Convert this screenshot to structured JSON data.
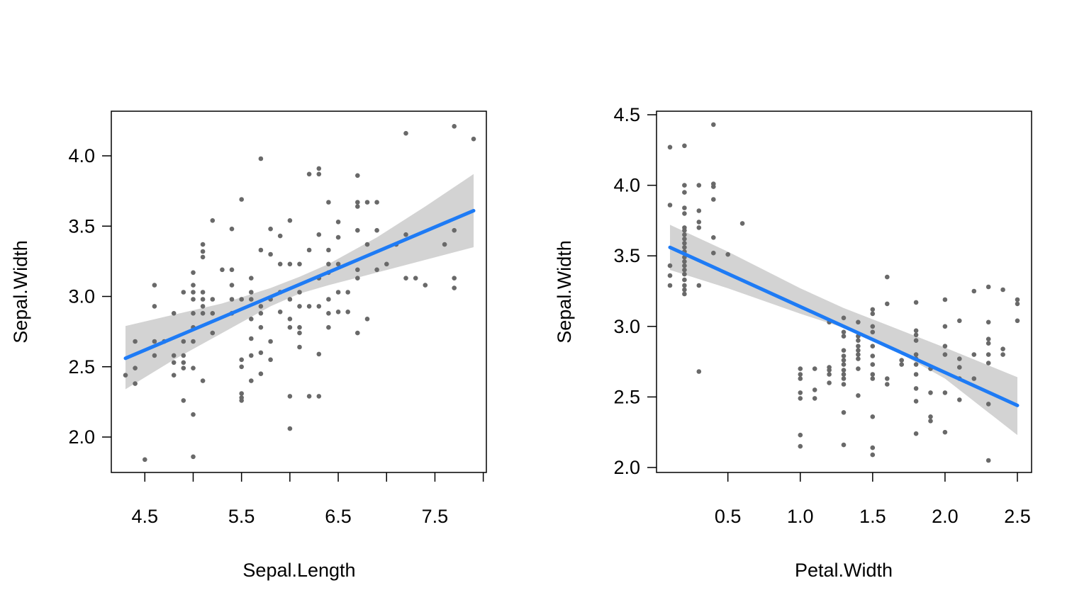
{
  "chart_data": [
    {
      "type": "scatter",
      "xlabel": "Sepal.Length",
      "ylabel": "Sepal.Width",
      "xlim": [
        4.3,
        7.9
      ],
      "ylim": [
        1.8,
        4.25
      ],
      "xticks": [
        "4.5",
        "5.5",
        "6.5",
        "7.5"
      ],
      "xtick_values": [
        4.5,
        5.0,
        5.5,
        6.0,
        6.5,
        7.0,
        7.5,
        8.0
      ],
      "yticks": [
        "2.0",
        "2.5",
        "3.0",
        "3.5",
        "4.0"
      ],
      "ytick_values": [
        2.0,
        2.5,
        3.0,
        3.5,
        4.0
      ],
      "point_color": "#696969",
      "fit_color": "#1E7BF5",
      "band_color": "#D3D3D3",
      "fit": {
        "type": "linear",
        "x": [
          4.3,
          7.9
        ],
        "y": [
          2.56,
          3.61
        ]
      },
      "band": {
        "x": [
          4.3,
          4.8,
          5.3,
          5.8,
          6.1,
          6.4,
          6.9,
          7.4,
          7.9
        ],
        "lower": [
          2.34,
          2.55,
          2.74,
          2.93,
          3.02,
          3.08,
          3.17,
          3.26,
          3.35
        ],
        "upper": [
          2.79,
          2.87,
          2.95,
          3.06,
          3.14,
          3.23,
          3.42,
          3.64,
          3.87
        ]
      },
      "grid": false,
      "points": [
        [
          4.3,
          2.44
        ],
        [
          4.4,
          2.68
        ],
        [
          4.4,
          2.49
        ],
        [
          4.4,
          2.38
        ],
        [
          4.5,
          1.84
        ],
        [
          4.6,
          3.08
        ],
        [
          4.6,
          2.93
        ],
        [
          4.6,
          2.68
        ],
        [
          4.6,
          2.58
        ],
        [
          4.7,
          2.68
        ],
        [
          4.8,
          2.88
        ],
        [
          4.8,
          2.58
        ],
        [
          4.8,
          2.53
        ],
        [
          4.8,
          2.44
        ],
        [
          4.9,
          2.26
        ],
        [
          4.9,
          2.68
        ],
        [
          4.9,
          2.58
        ],
        [
          4.9,
          2.53
        ],
        [
          4.9,
          2.49
        ],
        [
          4.9,
          3.03
        ],
        [
          5.0,
          3.17
        ],
        [
          5.0,
          3.08
        ],
        [
          5.0,
          3.03
        ],
        [
          5.0,
          2.98
        ],
        [
          5.0,
          2.88
        ],
        [
          5.0,
          2.78
        ],
        [
          5.0,
          2.68
        ],
        [
          5.0,
          2.49
        ],
        [
          5.0,
          2.16
        ],
        [
          5.0,
          1.86
        ],
        [
          5.1,
          3.37
        ],
        [
          5.1,
          3.32
        ],
        [
          5.1,
          3.28
        ],
        [
          5.1,
          3.03
        ],
        [
          5.1,
          2.98
        ],
        [
          5.1,
          2.93
        ],
        [
          5.1,
          2.88
        ],
        [
          5.1,
          2.4
        ],
        [
          5.2,
          3.54
        ],
        [
          5.2,
          2.98
        ],
        [
          5.2,
          2.88
        ],
        [
          5.2,
          2.74
        ],
        [
          5.3,
          3.19
        ],
        [
          5.4,
          3.48
        ],
        [
          5.4,
          3.19
        ],
        [
          5.4,
          3.08
        ],
        [
          5.4,
          2.98
        ],
        [
          5.4,
          2.88
        ],
        [
          5.5,
          3.69
        ],
        [
          5.5,
          2.98
        ],
        [
          5.5,
          2.55
        ],
        [
          5.5,
          2.5
        ],
        [
          5.5,
          2.31
        ],
        [
          5.5,
          2.28
        ],
        [
          5.5,
          2.26
        ],
        [
          5.6,
          3.13
        ],
        [
          5.6,
          3.03
        ],
        [
          5.6,
          2.98
        ],
        [
          5.6,
          2.84
        ],
        [
          5.6,
          2.7
        ],
        [
          5.6,
          2.58
        ],
        [
          5.6,
          2.4
        ],
        [
          5.7,
          3.98
        ],
        [
          5.7,
          3.33
        ],
        [
          5.7,
          2.93
        ],
        [
          5.7,
          2.88
        ],
        [
          5.7,
          2.78
        ],
        [
          5.7,
          2.6
        ],
        [
          5.7,
          2.45
        ],
        [
          5.8,
          3.48
        ],
        [
          5.8,
          3.3
        ],
        [
          5.8,
          2.98
        ],
        [
          5.8,
          2.68
        ],
        [
          5.8,
          2.55
        ],
        [
          5.9,
          3.43
        ],
        [
          5.9,
          3.23
        ],
        [
          5.9,
          3.03
        ],
        [
          5.9,
          2.89
        ],
        [
          6.0,
          3.54
        ],
        [
          6.0,
          3.23
        ],
        [
          6.0,
          2.98
        ],
        [
          6.0,
          2.84
        ],
        [
          6.0,
          2.78
        ],
        [
          6.0,
          2.29
        ],
        [
          6.0,
          2.06
        ],
        [
          6.1,
          3.23
        ],
        [
          6.1,
          3.03
        ],
        [
          6.1,
          2.93
        ],
        [
          6.1,
          2.78
        ],
        [
          6.1,
          2.74
        ],
        [
          6.1,
          2.64
        ],
        [
          6.2,
          3.87
        ],
        [
          6.2,
          3.33
        ],
        [
          6.2,
          2.93
        ],
        [
          6.2,
          2.29
        ],
        [
          6.3,
          3.91
        ],
        [
          6.3,
          3.87
        ],
        [
          6.3,
          3.44
        ],
        [
          6.3,
          3.13
        ],
        [
          6.3,
          2.93
        ],
        [
          6.3,
          2.59
        ],
        [
          6.3,
          2.29
        ],
        [
          6.4,
          3.67
        ],
        [
          6.4,
          3.33
        ],
        [
          6.4,
          3.23
        ],
        [
          6.4,
          3.17
        ],
        [
          6.4,
          2.98
        ],
        [
          6.4,
          2.88
        ],
        [
          6.4,
          2.78
        ],
        [
          6.5,
          3.53
        ],
        [
          6.5,
          3.42
        ],
        [
          6.5,
          3.23
        ],
        [
          6.5,
          3.03
        ],
        [
          6.5,
          2.89
        ],
        [
          6.6,
          3.03
        ],
        [
          6.6,
          2.89
        ],
        [
          6.7,
          3.86
        ],
        [
          6.7,
          3.67
        ],
        [
          6.7,
          3.64
        ],
        [
          6.7,
          3.47
        ],
        [
          6.7,
          3.19
        ],
        [
          6.7,
          3.13
        ],
        [
          6.7,
          2.74
        ],
        [
          6.8,
          3.67
        ],
        [
          6.8,
          3.37
        ],
        [
          6.8,
          2.84
        ],
        [
          6.9,
          3.67
        ],
        [
          6.9,
          3.47
        ],
        [
          6.9,
          3.19
        ],
        [
          7.0,
          3.23
        ],
        [
          7.1,
          3.37
        ],
        [
          7.2,
          4.16
        ],
        [
          7.2,
          3.44
        ],
        [
          7.2,
          3.13
        ],
        [
          7.3,
          3.13
        ],
        [
          7.4,
          3.08
        ],
        [
          7.6,
          3.37
        ],
        [
          7.7,
          4.21
        ],
        [
          7.7,
          3.47
        ],
        [
          7.7,
          3.13
        ],
        [
          7.7,
          3.06
        ],
        [
          7.9,
          4.12
        ]
      ]
    },
    {
      "type": "scatter",
      "xlabel": "Petal.Width",
      "ylabel": "Sepal.Width",
      "xlim": [
        0.1,
        2.5
      ],
      "ylim": [
        2.0,
        4.45
      ],
      "xticks": [
        "0.5",
        "1.0",
        "1.5",
        "2.0",
        "2.5"
      ],
      "xtick_values": [
        0.5,
        1.0,
        1.5,
        2.0,
        2.5
      ],
      "yticks": [
        "2.0",
        "2.5",
        "3.0",
        "3.5",
        "4.0",
        "4.5"
      ],
      "ytick_values": [
        2.0,
        2.5,
        3.0,
        3.5,
        4.0,
        4.5
      ],
      "point_color": "#696969",
      "fit_color": "#1E7BF5",
      "band_color": "#D3D3D3",
      "fit": {
        "type": "linear",
        "x": [
          0.1,
          2.5
        ],
        "y": [
          3.56,
          2.44
        ]
      },
      "band": {
        "x": [
          0.1,
          0.5,
          1.0,
          1.3,
          1.6,
          2.0,
          2.5
        ],
        "lower": [
          3.4,
          3.27,
          3.09,
          2.99,
          2.86,
          2.63,
          2.23
        ],
        "upper": [
          3.72,
          3.53,
          3.27,
          3.13,
          3.01,
          2.85,
          2.64
        ]
      },
      "grid": false,
      "points": [
        [
          0.1,
          4.27
        ],
        [
          0.1,
          3.86
        ],
        [
          0.1,
          3.43
        ],
        [
          0.1,
          3.36
        ],
        [
          0.1,
          3.29
        ],
        [
          0.2,
          4.28
        ],
        [
          0.2,
          4.0
        ],
        [
          0.2,
          3.95
        ],
        [
          0.2,
          3.84
        ],
        [
          0.2,
          3.8
        ],
        [
          0.2,
          3.7
        ],
        [
          0.2,
          3.68
        ],
        [
          0.2,
          3.65
        ],
        [
          0.2,
          3.62
        ],
        [
          0.2,
          3.59
        ],
        [
          0.2,
          3.56
        ],
        [
          0.2,
          3.53
        ],
        [
          0.2,
          3.49
        ],
        [
          0.2,
          3.46
        ],
        [
          0.2,
          3.43
        ],
        [
          0.2,
          3.4
        ],
        [
          0.2,
          3.37
        ],
        [
          0.2,
          3.33
        ],
        [
          0.2,
          3.29
        ],
        [
          0.2,
          3.26
        ],
        [
          0.2,
          3.23
        ],
        [
          0.3,
          4.0
        ],
        [
          0.3,
          3.82
        ],
        [
          0.3,
          3.74
        ],
        [
          0.3,
          3.7
        ],
        [
          0.3,
          3.29
        ],
        [
          0.3,
          2.68
        ],
        [
          0.4,
          4.43
        ],
        [
          0.4,
          4.01
        ],
        [
          0.4,
          3.99
        ],
        [
          0.4,
          3.9
        ],
        [
          0.4,
          3.63
        ],
        [
          0.4,
          3.52
        ],
        [
          0.5,
          3.51
        ],
        [
          0.6,
          3.73
        ],
        [
          1.0,
          2.7
        ],
        [
          1.0,
          2.66
        ],
        [
          1.0,
          2.63
        ],
        [
          1.0,
          2.53
        ],
        [
          1.0,
          2.49
        ],
        [
          1.0,
          2.23
        ],
        [
          1.0,
          2.15
        ],
        [
          1.1,
          2.7
        ],
        [
          1.1,
          2.55
        ],
        [
          1.1,
          2.49
        ],
        [
          1.2,
          3.03
        ],
        [
          1.2,
          2.71
        ],
        [
          1.2,
          2.69
        ],
        [
          1.2,
          2.66
        ],
        [
          1.2,
          2.6
        ],
        [
          1.3,
          3.06
        ],
        [
          1.3,
          2.96
        ],
        [
          1.3,
          2.93
        ],
        [
          1.3,
          2.83
        ],
        [
          1.3,
          2.79
        ],
        [
          1.3,
          2.76
        ],
        [
          1.3,
          2.73
        ],
        [
          1.3,
          2.69
        ],
        [
          1.3,
          2.66
        ],
        [
          1.3,
          2.63
        ],
        [
          1.3,
          2.59
        ],
        [
          1.3,
          2.39
        ],
        [
          1.3,
          2.16
        ],
        [
          1.4,
          3.03
        ],
        [
          1.4,
          2.93
        ],
        [
          1.4,
          2.9
        ],
        [
          1.4,
          2.86
        ],
        [
          1.4,
          2.83
        ],
        [
          1.4,
          2.8
        ],
        [
          1.4,
          2.77
        ],
        [
          1.4,
          2.7
        ],
        [
          1.4,
          2.51
        ],
        [
          1.5,
          3.12
        ],
        [
          1.5,
          3.09
        ],
        [
          1.5,
          3.0
        ],
        [
          1.5,
          2.96
        ],
        [
          1.5,
          2.86
        ],
        [
          1.5,
          2.79
        ],
        [
          1.5,
          2.73
        ],
        [
          1.5,
          2.66
        ],
        [
          1.5,
          2.63
        ],
        [
          1.5,
          2.36
        ],
        [
          1.5,
          2.14
        ],
        [
          1.5,
          2.09
        ],
        [
          1.6,
          3.35
        ],
        [
          1.6,
          3.16
        ],
        [
          1.6,
          2.63
        ],
        [
          1.6,
          2.59
        ],
        [
          1.7,
          2.76
        ],
        [
          1.7,
          2.73
        ],
        [
          1.8,
          3.17
        ],
        [
          1.8,
          2.97
        ],
        [
          1.8,
          2.94
        ],
        [
          1.8,
          2.9
        ],
        [
          1.8,
          2.8
        ],
        [
          1.8,
          2.77
        ],
        [
          1.8,
          2.73
        ],
        [
          1.8,
          2.66
        ],
        [
          1.8,
          2.56
        ],
        [
          1.8,
          2.47
        ],
        [
          1.8,
          2.24
        ],
        [
          1.9,
          2.7
        ],
        [
          1.9,
          2.53
        ],
        [
          1.9,
          2.36
        ],
        [
          1.9,
          2.33
        ],
        [
          2.0,
          3.19
        ],
        [
          2.0,
          3.0
        ],
        [
          2.0,
          2.86
        ],
        [
          2.0,
          2.8
        ],
        [
          2.0,
          2.53
        ],
        [
          2.0,
          2.25
        ],
        [
          2.1,
          3.04
        ],
        [
          2.1,
          2.77
        ],
        [
          2.1,
          2.71
        ],
        [
          2.1,
          2.63
        ],
        [
          2.1,
          2.48
        ],
        [
          2.2,
          3.25
        ],
        [
          2.2,
          2.8
        ],
        [
          2.2,
          2.63
        ],
        [
          2.3,
          3.28
        ],
        [
          2.3,
          3.03
        ],
        [
          2.3,
          2.91
        ],
        [
          2.3,
          2.88
        ],
        [
          2.3,
          2.8
        ],
        [
          2.3,
          2.74
        ],
        [
          2.3,
          2.45
        ],
        [
          2.3,
          2.05
        ],
        [
          2.4,
          3.26
        ],
        [
          2.4,
          2.84
        ],
        [
          2.4,
          2.8
        ],
        [
          2.5,
          3.19
        ],
        [
          2.5,
          3.16
        ],
        [
          2.5,
          3.04
        ]
      ]
    }
  ]
}
